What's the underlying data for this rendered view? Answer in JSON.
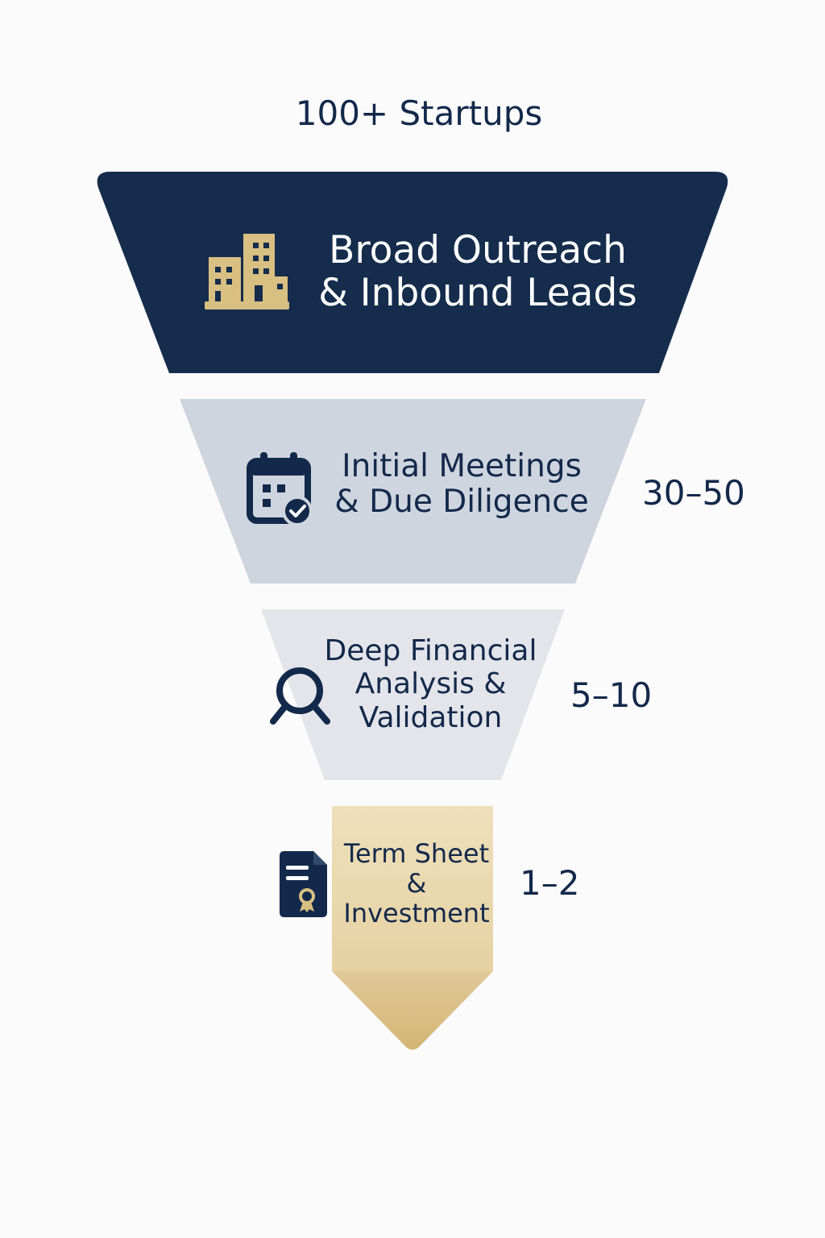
{
  "header": {
    "top_count": "100+ Startups"
  },
  "colors": {
    "navy": "#152c4c",
    "gray": "#cfd5de",
    "light_gray": "#e3e5ea",
    "tan": "#ecdcb6",
    "gold": "#d7bc7e",
    "icon_gold": "#d8bf82"
  },
  "stages": [
    {
      "lines": [
        "Broad Outreach",
        "& Inbound Leads"
      ],
      "icon": "buildings-icon"
    },
    {
      "lines": [
        "Initial Meetings",
        "& Due Diligence"
      ],
      "count": "30–50",
      "icon": "calendar-check-icon"
    },
    {
      "lines": [
        "Deep Financial",
        "Analysis &",
        "Validation"
      ],
      "count": "5–10",
      "icon": "search-icon"
    },
    {
      "lines": [
        "Term Sheet",
        "&",
        "Investment"
      ],
      "count": "1–2",
      "icon": "certificate-document-icon"
    }
  ]
}
